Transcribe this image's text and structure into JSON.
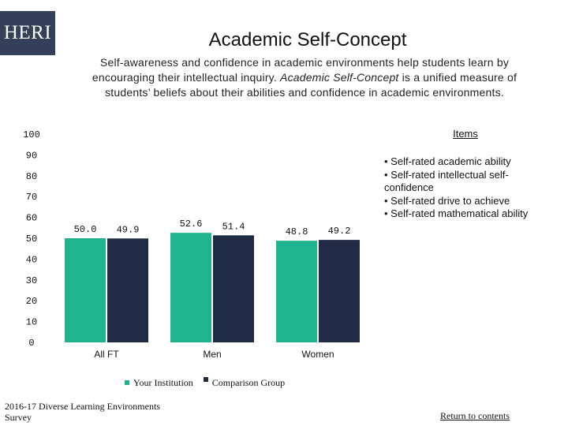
{
  "logo": {
    "text": "HERI"
  },
  "header": {
    "title": "Academic Self-Concept",
    "subtitle_part1": "Self-awareness and confidence in academic environments help students learn by encouraging their intellectual inquiry. ",
    "subtitle_em": "Academic Self-Concept",
    "subtitle_part2": " is a unified measure of students’ beliefs about their abilities and confidence in academic environments."
  },
  "items_panel": {
    "heading": "Items",
    "items": [
      "• Self-rated academic ability",
      "• Self-rated intellectual self-confidence",
      "• Self-rated drive to achieve",
      "• Self-rated mathematical ability"
    ]
  },
  "colors": {
    "your_institution": "#1fb38e",
    "comparison_group": "#212b45",
    "logo_bg": "#34405a"
  },
  "chart_data": {
    "type": "bar",
    "title": "",
    "xlabel": "",
    "ylabel": "",
    "categories": [
      "All FT",
      "Men",
      "Women"
    ],
    "series": [
      {
        "name": "Your Institution",
        "values": [
          50.0,
          52.6,
          48.8
        ]
      },
      {
        "name": "Comparison Group",
        "values": [
          49.9,
          51.4,
          49.2
        ]
      }
    ],
    "value_labels": [
      [
        "50.0",
        "52.6",
        "48.8"
      ],
      [
        "49.9",
        "51.4",
        "49.2"
      ]
    ],
    "ylim": [
      0,
      100
    ],
    "yticks": [
      0,
      10,
      20,
      30,
      40,
      50,
      60,
      70,
      80,
      90,
      100
    ],
    "grid": false,
    "legend": "bottom"
  },
  "footer": {
    "source": "2016-17 Diverse Learning Environments Survey",
    "return_link": "Return to contents"
  }
}
